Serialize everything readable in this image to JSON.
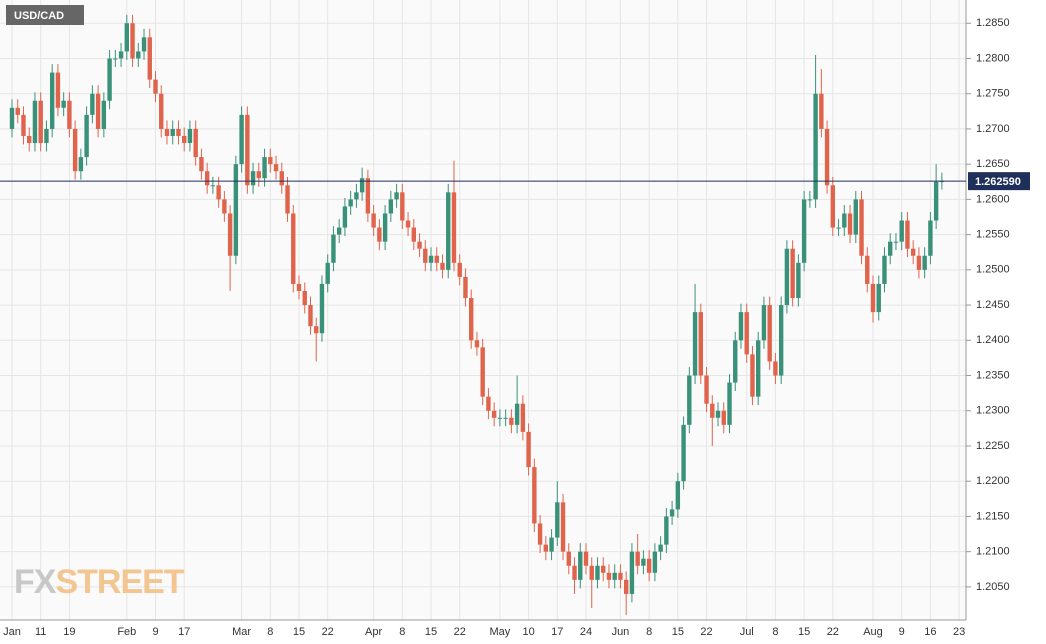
{
  "chart_data": {
    "type": "candlestick",
    "title": "USD/CAD",
    "watermark": [
      "FX",
      "STREET"
    ],
    "categories": [
      "Jan",
      null,
      null,
      null,
      null,
      "11",
      null,
      null,
      null,
      null,
      "19",
      null,
      null,
      null,
      null,
      null,
      null,
      null,
      null,
      null,
      "Feb",
      null,
      null,
      null,
      null,
      "9",
      null,
      null,
      null,
      null,
      "17",
      null,
      null,
      null,
      null,
      null,
      null,
      null,
      null,
      null,
      "Mar",
      null,
      null,
      null,
      null,
      "8",
      null,
      null,
      null,
      null,
      "15",
      null,
      null,
      null,
      null,
      "22",
      null,
      null,
      null,
      null,
      null,
      null,
      null,
      "Apr",
      null,
      null,
      null,
      null,
      "8",
      null,
      null,
      null,
      null,
      "15",
      null,
      null,
      null,
      null,
      "22",
      null,
      null,
      null,
      null,
      null,
      null,
      "May",
      null,
      null,
      null,
      null,
      "10",
      null,
      null,
      null,
      null,
      "17",
      null,
      null,
      null,
      null,
      "24",
      null,
      null,
      null,
      null,
      null,
      "Jun",
      null,
      null,
      null,
      null,
      "8",
      null,
      null,
      null,
      null,
      "15",
      null,
      null,
      null,
      null,
      "22",
      null,
      null,
      null,
      null,
      null,
      null,
      "Jul",
      null,
      null,
      null,
      null,
      "8",
      null,
      null,
      null,
      null,
      "15",
      null,
      null,
      null,
      null,
      "22",
      null,
      null,
      null,
      null,
      null,
      null,
      "Aug",
      null,
      null,
      null,
      null,
      "9",
      null,
      null,
      null,
      null,
      "16",
      null,
      null,
      null,
      null,
      "23"
    ],
    "open": [
      1.27,
      1.273,
      1.272,
      1.269,
      1.268,
      1.274,
      1.268,
      1.27,
      1.278,
      1.273,
      1.274,
      1.27,
      1.264,
      1.266,
      1.272,
      1.275,
      1.27,
      1.274,
      1.28,
      1.28,
      1.281,
      1.285,
      1.28,
      1.281,
      1.283,
      1.277,
      1.275,
      1.27,
      1.269,
      1.27,
      1.269,
      1.268,
      1.27,
      1.266,
      1.264,
      1.262,
      1.262,
      1.26,
      1.258,
      1.252,
      1.265,
      1.272,
      1.262,
      1.264,
      1.263,
      1.266,
      1.265,
      1.264,
      1.262,
      1.258,
      1.248,
      1.247,
      1.245,
      1.242,
      1.241,
      1.248,
      1.251,
      1.255,
      1.256,
      1.259,
      1.26,
      1.261,
      1.263,
      1.258,
      1.256,
      1.254,
      1.258,
      1.26,
      1.261,
      1.257,
      1.256,
      1.254,
      1.253,
      1.251,
      1.252,
      1.251,
      1.25,
      1.261,
      1.251,
      1.249,
      1.246,
      1.24,
      1.239,
      1.232,
      1.23,
      1.229,
      1.229,
      1.229,
      1.228,
      1.231,
      1.227,
      1.222,
      1.214,
      1.211,
      1.21,
      1.212,
      1.217,
      1.21,
      1.208,
      1.206,
      1.21,
      1.208,
      1.206,
      1.208,
      1.207,
      1.206,
      1.207,
      1.206,
      1.204,
      1.21,
      1.208,
      1.209,
      1.207,
      1.21,
      1.211,
      1.215,
      1.216,
      1.22,
      1.228,
      1.235,
      1.244,
      1.235,
      1.231,
      1.229,
      1.23,
      1.228,
      1.234,
      1.24,
      1.244,
      1.238,
      1.232,
      1.24,
      1.245,
      1.237,
      1.235,
      1.245,
      1.253,
      1.246,
      1.251,
      1.26,
      1.26,
      1.275,
      1.27,
      1.262,
      1.256,
      1.256,
      1.258,
      1.255,
      1.26,
      1.252,
      1.248,
      1.244,
      1.248,
      1.252,
      1.254,
      1.254,
      1.257,
      1.253,
      1.252,
      1.25,
      1.252,
      1.257,
      1.2625,
      null,
      null,
      null
    ],
    "high": [
      1.2742,
      1.2742,
      1.2732,
      1.2702,
      1.2752,
      1.2752,
      1.2712,
      1.2792,
      1.2792,
      1.2752,
      1.2752,
      1.2712,
      1.2672,
      1.2732,
      1.2762,
      1.2762,
      1.2752,
      1.2812,
      1.2812,
      1.2822,
      1.2862,
      1.2862,
      1.2822,
      1.2842,
      1.2842,
      1.2782,
      1.2762,
      1.2712,
      1.2712,
      1.2712,
      1.2702,
      1.2712,
      1.2712,
      1.2672,
      1.2652,
      1.2632,
      1.2632,
      1.2612,
      1.2592,
      1.2662,
      1.2732,
      1.2732,
      1.2652,
      1.2652,
      1.2672,
      1.2672,
      1.2662,
      1.2652,
      1.2632,
      1.2592,
      1.2492,
      1.2482,
      1.2462,
      1.2432,
      1.2492,
      1.2522,
      1.2562,
      1.2572,
      1.2602,
      1.2612,
      1.2622,
      1.2645,
      1.2642,
      1.2592,
      1.2572,
      1.2592,
      1.2612,
      1.2622,
      1.2622,
      1.2582,
      1.2572,
      1.2552,
      1.2542,
      1.2532,
      1.2532,
      1.2522,
      1.2622,
      1.2655,
      1.2522,
      1.2502,
      1.2472,
      1.2412,
      1.2402,
      1.2332,
      1.2312,
      1.2302,
      1.2302,
      1.2302,
      1.235,
      1.2322,
      1.2282,
      1.2232,
      1.2152,
      1.2122,
      1.2132,
      1.22,
      1.2182,
      1.2112,
      1.2092,
      1.2112,
      1.2112,
      1.2092,
      1.2092,
      1.2092,
      1.2082,
      1.2082,
      1.2082,
      1.2072,
      1.2112,
      1.2125,
      1.2102,
      1.2102,
      1.2112,
      1.2122,
      1.2162,
      1.2172,
      1.2212,
      1.2292,
      1.2362,
      1.248,
      1.2452,
      1.2362,
      1.2322,
      1.2312,
      1.2312,
      1.2352,
      1.2412,
      1.2452,
      1.2452,
      1.2392,
      1.2412,
      1.2462,
      1.2462,
      1.2382,
      1.2462,
      1.2542,
      1.2542,
      1.2522,
      1.2612,
      1.2612,
      1.2805,
      1.2785,
      1.2712,
      1.2632,
      1.2572,
      1.2592,
      1.2592,
      1.2612,
      1.2612,
      1.2532,
      1.2492,
      1.2492,
      1.2532,
      1.2552,
      1.2552,
      1.2582,
      1.2582,
      1.2542,
      1.2532,
      1.2532,
      1.2582,
      1.265,
      1.2638,
      null,
      null,
      null
    ],
    "low": [
      1.2688,
      1.2708,
      1.2678,
      1.2668,
      1.2668,
      1.2668,
      1.2668,
      1.2688,
      1.2718,
      1.2718,
      1.2688,
      1.2628,
      1.2628,
      1.2648,
      1.2708,
      1.2688,
      1.2688,
      1.2728,
      1.2788,
      1.2788,
      1.2798,
      1.2788,
      1.2788,
      1.2798,
      1.2758,
      1.2738,
      1.2688,
      1.2678,
      1.2678,
      1.2678,
      1.2668,
      1.2668,
      1.2648,
      1.2628,
      1.2608,
      1.2608,
      1.2588,
      1.2568,
      1.247,
      1.2508,
      1.2638,
      1.2608,
      1.2608,
      1.2618,
      1.2618,
      1.2638,
      1.2628,
      1.2608,
      1.2568,
      1.2468,
      1.2458,
      1.2438,
      1.2408,
      1.237,
      1.2398,
      1.2468,
      1.2498,
      1.2538,
      1.2548,
      1.2578,
      1.2588,
      1.2598,
      1.2568,
      1.2548,
      1.2528,
      1.2528,
      1.2568,
      1.2588,
      1.2558,
      1.2548,
      1.2528,
      1.2518,
      1.2498,
      1.2498,
      1.2498,
      1.2488,
      1.2488,
      1.2498,
      1.2478,
      1.2448,
      1.2388,
      1.2378,
      1.2308,
      1.2288,
      1.2278,
      1.2278,
      1.2278,
      1.2268,
      1.2268,
      1.2258,
      1.2208,
      1.2128,
      1.2098,
      1.2088,
      1.2088,
      1.2108,
      1.2088,
      1.2068,
      1.204,
      1.2048,
      1.2068,
      1.202,
      1.2048,
      1.2058,
      1.2048,
      1.2048,
      1.2048,
      1.201,
      1.2028,
      1.2068,
      1.2068,
      1.2058,
      1.2058,
      1.2088,
      1.2098,
      1.2138,
      1.2148,
      1.2188,
      1.2268,
      1.2338,
      1.2338,
      1.2298,
      1.225,
      1.2278,
      1.2268,
      1.2268,
      1.2328,
      1.2388,
      1.2368,
      1.2308,
      1.2308,
      1.2388,
      1.2358,
      1.2338,
      1.2338,
      1.2438,
      1.2448,
      1.2448,
      1.2498,
      1.2588,
      1.2588,
      1.2688,
      1.2608,
      1.2548,
      1.2548,
      1.2548,
      1.2538,
      1.2538,
      1.2508,
      1.2468,
      1.2425,
      1.2428,
      1.2468,
      1.2508,
      1.2528,
      1.2528,
      1.2518,
      1.2508,
      1.2488,
      1.2488,
      1.2508,
      1.2558,
      1.2614,
      null,
      null,
      null
    ],
    "close": [
      1.273,
      1.272,
      1.269,
      1.268,
      1.274,
      1.268,
      1.27,
      1.278,
      1.273,
      1.274,
      1.27,
      1.264,
      1.266,
      1.272,
      1.275,
      1.27,
      1.274,
      1.28,
      1.28,
      1.281,
      1.285,
      1.28,
      1.281,
      1.283,
      1.277,
      1.275,
      1.27,
      1.269,
      1.27,
      1.269,
      1.268,
      1.27,
      1.266,
      1.264,
      1.262,
      1.262,
      1.26,
      1.258,
      1.252,
      1.265,
      1.272,
      1.262,
      1.264,
      1.263,
      1.266,
      1.265,
      1.264,
      1.262,
      1.258,
      1.248,
      1.247,
      1.245,
      1.242,
      1.241,
      1.248,
      1.251,
      1.255,
      1.256,
      1.259,
      1.26,
      1.261,
      1.263,
      1.258,
      1.256,
      1.254,
      1.258,
      1.26,
      1.261,
      1.257,
      1.256,
      1.254,
      1.253,
      1.251,
      1.252,
      1.251,
      1.25,
      1.261,
      1.251,
      1.249,
      1.246,
      1.24,
      1.239,
      1.232,
      1.23,
      1.229,
      1.229,
      1.229,
      1.228,
      1.231,
      1.227,
      1.222,
      1.214,
      1.211,
      1.21,
      1.212,
      1.217,
      1.21,
      1.208,
      1.206,
      1.21,
      1.208,
      1.206,
      1.208,
      1.207,
      1.206,
      1.207,
      1.206,
      1.204,
      1.21,
      1.208,
      1.209,
      1.207,
      1.21,
      1.211,
      1.215,
      1.216,
      1.22,
      1.228,
      1.235,
      1.244,
      1.235,
      1.231,
      1.229,
      1.23,
      1.228,
      1.234,
      1.24,
      1.244,
      1.238,
      1.232,
      1.24,
      1.245,
      1.237,
      1.235,
      1.245,
      1.253,
      1.246,
      1.251,
      1.26,
      1.26,
      1.275,
      1.27,
      1.262,
      1.256,
      1.256,
      1.258,
      1.255,
      1.26,
      1.252,
      1.248,
      1.244,
      1.248,
      1.252,
      1.254,
      1.254,
      1.257,
      1.253,
      1.252,
      1.25,
      1.252,
      1.257,
      1.2625,
      1.2626,
      null,
      null,
      null
    ],
    "up_color": "#3a9179",
    "down_color": "#e0634c",
    "price_line": {
      "value": 1.26259,
      "label": "1.262590"
    },
    "ylim": [
      1.2003,
      1.2883
    ],
    "yticks": [
      {
        "value": 1.205,
        "label": "1.2050"
      },
      {
        "value": 1.21,
        "label": "1.2100"
      },
      {
        "value": 1.215,
        "label": "1.2150"
      },
      {
        "value": 1.22,
        "label": "1.2200"
      },
      {
        "value": 1.225,
        "label": "1.2250"
      },
      {
        "value": 1.23,
        "label": "1.2300"
      },
      {
        "value": 1.235,
        "label": "1.2350"
      },
      {
        "value": 1.24,
        "label": "1.2400"
      },
      {
        "value": 1.245,
        "label": "1.2450"
      },
      {
        "value": 1.25,
        "label": "1.2500"
      },
      {
        "value": 1.255,
        "label": "1.2550"
      },
      {
        "value": 1.26,
        "label": "1.2600"
      },
      {
        "value": 1.265,
        "label": "1.2650"
      },
      {
        "value": 1.27,
        "label": "1.2700"
      },
      {
        "value": 1.275,
        "label": "1.2750"
      },
      {
        "value": 1.28,
        "label": "1.2800"
      },
      {
        "value": 1.285,
        "label": "1.2850"
      }
    ],
    "grid": true
  }
}
